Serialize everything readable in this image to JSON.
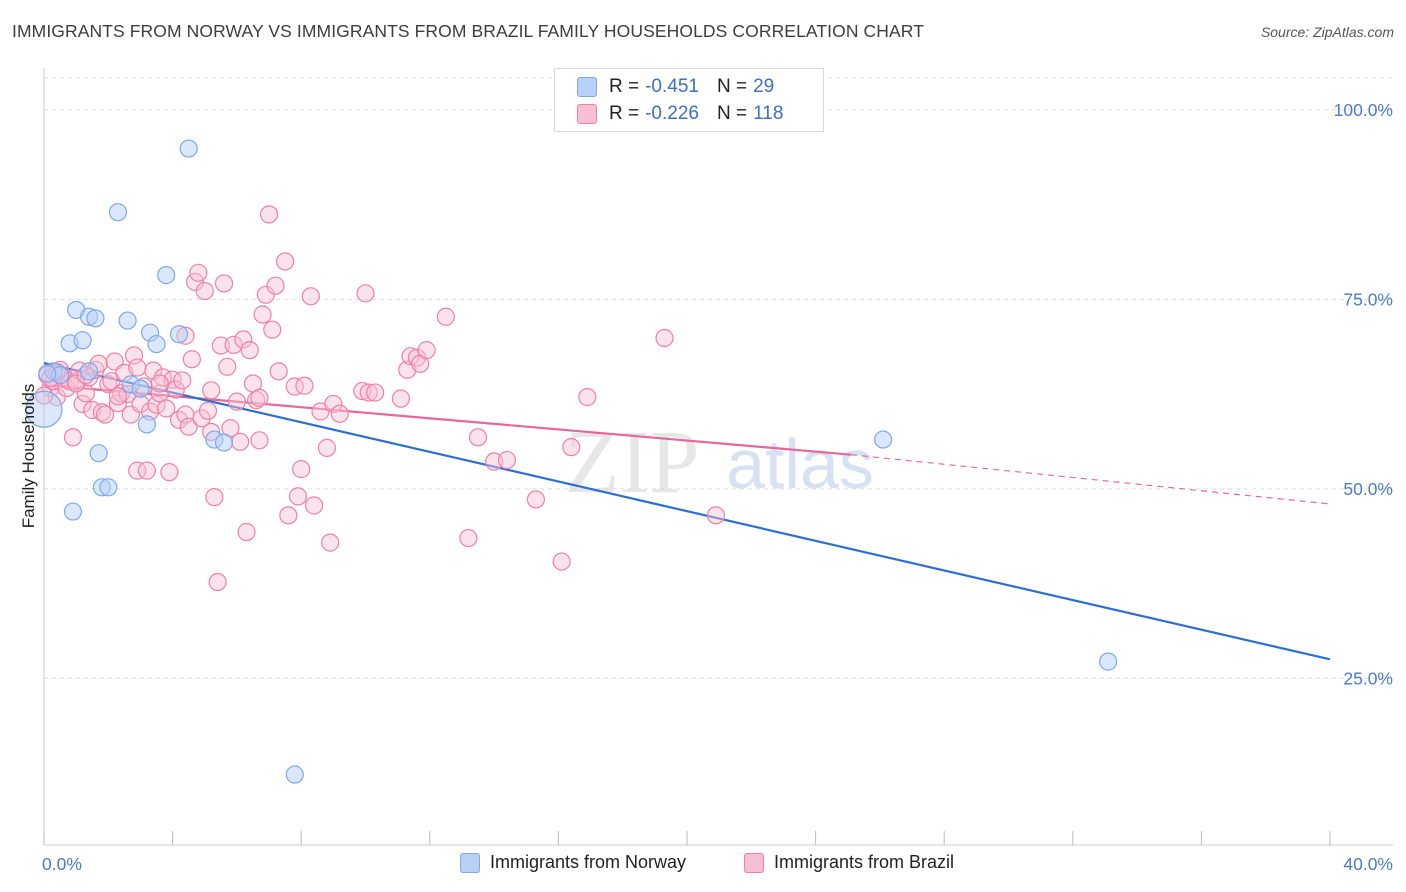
{
  "title": "IMMIGRANTS FROM NORWAY VS IMMIGRANTS FROM BRAZIL FAMILY HOUSEHOLDS CORRELATION CHART",
  "source": "Source: ZipAtlas.com",
  "colors": {
    "norway": "#7aaaf0",
    "norway_fill": "#b8d0f5",
    "norway_line": "#2a6fd6",
    "brazil": "#f080a8",
    "brazil_fill": "#f7c0d2",
    "brazil_line": "#e8669a",
    "tick": "#4a7cc9",
    "grid": "#dddddd"
  },
  "legend": {
    "r_label": "R =",
    "n_label": "N =",
    "norway": {
      "r": "-0.451",
      "n": "29"
    },
    "brazil": {
      "r": "-0.226",
      "n": "118"
    }
  },
  "bottom_legend": {
    "norway": "Immigrants from Norway",
    "brazil": "Immigrants from Brazil"
  },
  "watermark": {
    "zip": "ZIP",
    "atlas": "atlas"
  },
  "chart_data": {
    "type": "scatter",
    "title": "IMMIGRANTS FROM NORWAY VS IMMIGRANTS FROM BRAZIL FAMILY HOUSEHOLDS CORRELATION CHART",
    "xlabel": "",
    "ylabel": "Family Households",
    "xlim": [
      0,
      40
    ],
    "ylim": [
      3,
      105
    ],
    "x_tick_labels": {
      "left": "0.0%",
      "right": "40.0%"
    },
    "y_ticks": [
      {
        "value": 100,
        "label": "100.0%"
      },
      {
        "value": 75,
        "label": "75.0%"
      },
      {
        "value": 50,
        "label": "50.0%"
      },
      {
        "value": 25,
        "label": "25.0%"
      }
    ],
    "series": [
      {
        "name": "Immigrants from Norway",
        "r": -0.451,
        "n": 29,
        "trend": {
          "x": [
            0,
            40
          ],
          "y": [
            66.6,
            27.5
          ]
        },
        "points": [
          [
            0.0,
            60.5
          ],
          [
            0.3,
            65.5
          ],
          [
            0.5,
            65.0
          ],
          [
            0.8,
            69.2
          ],
          [
            0.9,
            47.0
          ],
          [
            1.0,
            73.6
          ],
          [
            1.2,
            69.6
          ],
          [
            1.4,
            65.5
          ],
          [
            1.4,
            72.7
          ],
          [
            1.6,
            72.5
          ],
          [
            1.7,
            54.7
          ],
          [
            1.8,
            50.2
          ],
          [
            2.0,
            50.2
          ],
          [
            2.3,
            86.5
          ],
          [
            2.6,
            72.2
          ],
          [
            2.7,
            63.8
          ],
          [
            3.0,
            63.2
          ],
          [
            3.2,
            58.5
          ],
          [
            3.3,
            70.6
          ],
          [
            3.5,
            69.1
          ],
          [
            3.8,
            78.2
          ],
          [
            4.2,
            70.4
          ],
          [
            4.5,
            94.9
          ],
          [
            5.3,
            56.5
          ],
          [
            5.6,
            56.1
          ],
          [
            7.8,
            12.3
          ],
          [
            26.1,
            56.5
          ],
          [
            33.1,
            27.2
          ],
          [
            0.1,
            65.2
          ]
        ]
      },
      {
        "name": "Immigrants from Brazil",
        "r": -0.226,
        "n": 118,
        "trend": {
          "x": [
            0,
            25.1
          ],
          "y": [
            63.7,
            54.5
          ]
        },
        "trend_dashed": {
          "x": [
            25.1,
            40
          ],
          "y": [
            54.5,
            48.0
          ]
        },
        "points": [
          [
            0.1,
            65.0
          ],
          [
            0.2,
            63.3
          ],
          [
            0.3,
            64.2
          ],
          [
            0.4,
            62.1
          ],
          [
            0.5,
            65.7
          ],
          [
            0.6,
            64.7
          ],
          [
            0.7,
            63.3
          ],
          [
            0.8,
            64.2
          ],
          [
            0.9,
            56.8
          ],
          [
            1.0,
            64.2
          ],
          [
            1.1,
            65.6
          ],
          [
            1.2,
            61.2
          ],
          [
            1.3,
            62.6
          ],
          [
            1.4,
            64.7
          ],
          [
            1.5,
            60.4
          ],
          [
            1.6,
            65.7
          ],
          [
            1.7,
            66.5
          ],
          [
            1.8,
            60.1
          ],
          [
            1.9,
            59.8
          ],
          [
            2.0,
            63.8
          ],
          [
            2.1,
            64.2
          ],
          [
            2.2,
            66.8
          ],
          [
            2.3,
            61.3
          ],
          [
            2.4,
            62.6
          ],
          [
            2.5,
            65.3
          ],
          [
            2.6,
            62.5
          ],
          [
            2.7,
            59.8
          ],
          [
            2.8,
            67.6
          ],
          [
            2.9,
            52.4
          ],
          [
            3.0,
            61.2
          ],
          [
            3.1,
            63.5
          ],
          [
            3.2,
            52.4
          ],
          [
            3.3,
            60.2
          ],
          [
            3.4,
            65.6
          ],
          [
            3.5,
            61.1
          ],
          [
            3.6,
            62.6
          ],
          [
            3.7,
            64.7
          ],
          [
            3.8,
            60.6
          ],
          [
            3.9,
            52.2
          ],
          [
            4.0,
            64.4
          ],
          [
            4.1,
            63.1
          ],
          [
            4.2,
            59.1
          ],
          [
            4.3,
            64.3
          ],
          [
            4.4,
            59.8
          ],
          [
            4.5,
            58.2
          ],
          [
            4.6,
            67.1
          ],
          [
            4.7,
            77.3
          ],
          [
            4.8,
            78.5
          ],
          [
            4.9,
            59.3
          ],
          [
            5.0,
            76.1
          ],
          [
            5.1,
            60.3
          ],
          [
            5.2,
            57.5
          ],
          [
            5.3,
            48.9
          ],
          [
            5.4,
            37.7
          ],
          [
            5.5,
            68.9
          ],
          [
            5.6,
            77.1
          ],
          [
            5.7,
            66.1
          ],
          [
            5.8,
            58.0
          ],
          [
            5.9,
            69.0
          ],
          [
            6.0,
            61.5
          ],
          [
            6.1,
            56.2
          ],
          [
            6.2,
            69.7
          ],
          [
            6.3,
            44.3
          ],
          [
            6.4,
            68.3
          ],
          [
            6.5,
            63.9
          ],
          [
            6.6,
            61.7
          ],
          [
            6.7,
            56.4
          ],
          [
            6.8,
            73.0
          ],
          [
            6.9,
            75.6
          ],
          [
            7.0,
            86.2
          ],
          [
            7.1,
            71.0
          ],
          [
            7.2,
            76.8
          ],
          [
            7.3,
            65.5
          ],
          [
            7.5,
            80.0
          ],
          [
            7.6,
            46.5
          ],
          [
            7.8,
            63.5
          ],
          [
            7.9,
            49.0
          ],
          [
            8.0,
            52.6
          ],
          [
            8.1,
            63.6
          ],
          [
            8.3,
            75.4
          ],
          [
            8.4,
            47.8
          ],
          [
            8.6,
            60.2
          ],
          [
            8.8,
            55.4
          ],
          [
            8.9,
            42.9
          ],
          [
            9.0,
            61.2
          ],
          [
            9.2,
            59.9
          ],
          [
            9.9,
            62.9
          ],
          [
            10.0,
            75.8
          ],
          [
            10.1,
            62.7
          ],
          [
            10.3,
            62.7
          ],
          [
            11.1,
            61.9
          ],
          [
            11.3,
            65.7
          ],
          [
            11.4,
            67.5
          ],
          [
            11.6,
            67.3
          ],
          [
            11.7,
            66.5
          ],
          [
            11.9,
            68.3
          ],
          [
            12.5,
            72.7
          ],
          [
            13.2,
            43.5
          ],
          [
            13.5,
            56.8
          ],
          [
            14.0,
            53.6
          ],
          [
            14.4,
            53.8
          ],
          [
            15.3,
            48.6
          ],
          [
            16.1,
            40.4
          ],
          [
            16.4,
            55.5
          ],
          [
            16.9,
            62.1
          ],
          [
            19.3,
            69.9
          ],
          [
            20.9,
            46.5
          ],
          [
            0.0,
            62.3
          ],
          [
            0.2,
            64.6
          ],
          [
            0.4,
            65.4
          ],
          [
            1.0,
            63.9
          ],
          [
            1.3,
            65.0
          ],
          [
            2.3,
            62.2
          ],
          [
            2.9,
            66.0
          ],
          [
            3.6,
            63.9
          ],
          [
            4.4,
            70.2
          ],
          [
            5.2,
            63.0
          ],
          [
            6.7,
            62.0
          ]
        ]
      }
    ]
  }
}
